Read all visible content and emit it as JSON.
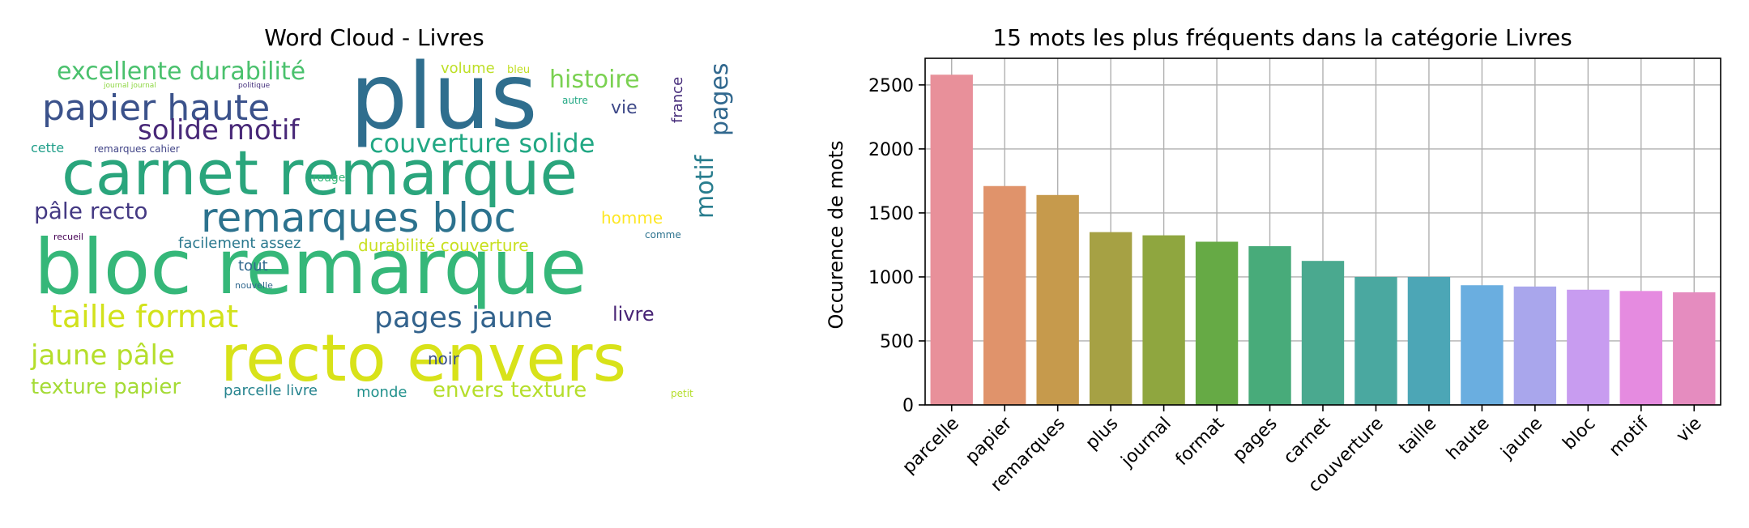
{
  "wordcloud": {
    "title": "Word Cloud - Livres",
    "words": [
      {
        "text": "plus",
        "color": "#2f6e8e"
      },
      {
        "text": "carnet remarque",
        "color": "#2aa57c"
      },
      {
        "text": "bloc remarque",
        "color": "#35b779"
      },
      {
        "text": "recto envers",
        "color": "#d8e219"
      },
      {
        "text": "papier haute",
        "color": "#3b528b"
      },
      {
        "text": "remarques bloc",
        "color": "#2c728e"
      },
      {
        "text": "taille format",
        "color": "#d2e21b"
      },
      {
        "text": "jaune pâle",
        "color": "#b5de2b"
      },
      {
        "text": "pages jaune",
        "color": "#33638d"
      },
      {
        "text": "excellente durabilité",
        "color": "#4ac16d"
      },
      {
        "text": "histoire",
        "color": "#7ad151"
      },
      {
        "text": "solide motif",
        "color": "#482878"
      },
      {
        "text": "couverture solide",
        "color": "#22a884"
      },
      {
        "text": "pâle recto",
        "color": "#443983"
      },
      {
        "text": "durabilité couverture",
        "color": "#c8e020"
      },
      {
        "text": "texture papier",
        "color": "#a5db36"
      },
      {
        "text": "envers texture",
        "color": "#b5de2b"
      },
      {
        "text": "pages",
        "color": "#31688e"
      },
      {
        "text": "motif",
        "color": "#287d8e"
      },
      {
        "text": "vie",
        "color": "#3e4989"
      },
      {
        "text": "france",
        "color": "#472d7b"
      },
      {
        "text": "livre",
        "color": "#482475"
      },
      {
        "text": "homme",
        "color": "#fde725"
      },
      {
        "text": "parcelle livre",
        "color": "#25838e"
      },
      {
        "text": "facilement assez",
        "color": "#2a788e"
      },
      {
        "text": "monde",
        "color": "#21918c"
      },
      {
        "text": "noir",
        "color": "#3b528b"
      },
      {
        "text": "tout",
        "color": "#31688e"
      },
      {
        "text": "cette",
        "color": "#1f9e89"
      },
      {
        "text": "volume",
        "color": "#bddf26"
      },
      {
        "text": "bleu",
        "color": "#c2df23"
      },
      {
        "text": "autre",
        "color": "#22a884"
      },
      {
        "text": "rouge",
        "color": "#35b779"
      },
      {
        "text": "comme",
        "color": "#2c728e"
      },
      {
        "text": "petit",
        "color": "#b5de2b"
      },
      {
        "text": "remarques cahier",
        "color": "#414487"
      },
      {
        "text": "nouvelle",
        "color": "#31688e"
      },
      {
        "text": "recueil",
        "color": "#440154"
      },
      {
        "text": "journal journal",
        "color": "#8fd744"
      },
      {
        "text": "politique",
        "color": "#46327e"
      }
    ]
  },
  "barchart": {
    "chart_data": {
      "type": "bar",
      "title": "15 mots les plus fréquents dans la catégorie Livres",
      "xlabel": "",
      "ylabel": "Occurence de mots",
      "categories": [
        "parcelle",
        "papier",
        "remarques",
        "plus",
        "journal",
        "format",
        "pages",
        "carnet",
        "couverture",
        "taille",
        "haute",
        "jaune",
        "bloc",
        "motif",
        "vie"
      ],
      "values": [
        2580,
        1710,
        1640,
        1350,
        1325,
        1275,
        1240,
        1125,
        1000,
        1000,
        935,
        925,
        900,
        890,
        880
      ],
      "colors": [
        "#e8909a",
        "#e0936b",
        "#c69a4c",
        "#a6a144",
        "#8fa63f",
        "#66aa45",
        "#48ab7a",
        "#4aa98f",
        "#4aa8a0",
        "#4ca6b6",
        "#6aaee0",
        "#a9a6ec",
        "#c89cf0",
        "#e58be0",
        "#e58cbf"
      ],
      "yticks": [
        0,
        500,
        1000,
        1500,
        2000,
        2500
      ],
      "ytick_labels": [
        "0",
        "500",
        "1000",
        "1500",
        "2000",
        "2500"
      ],
      "ylim": [
        0,
        2708
      ],
      "grid": true
    }
  }
}
